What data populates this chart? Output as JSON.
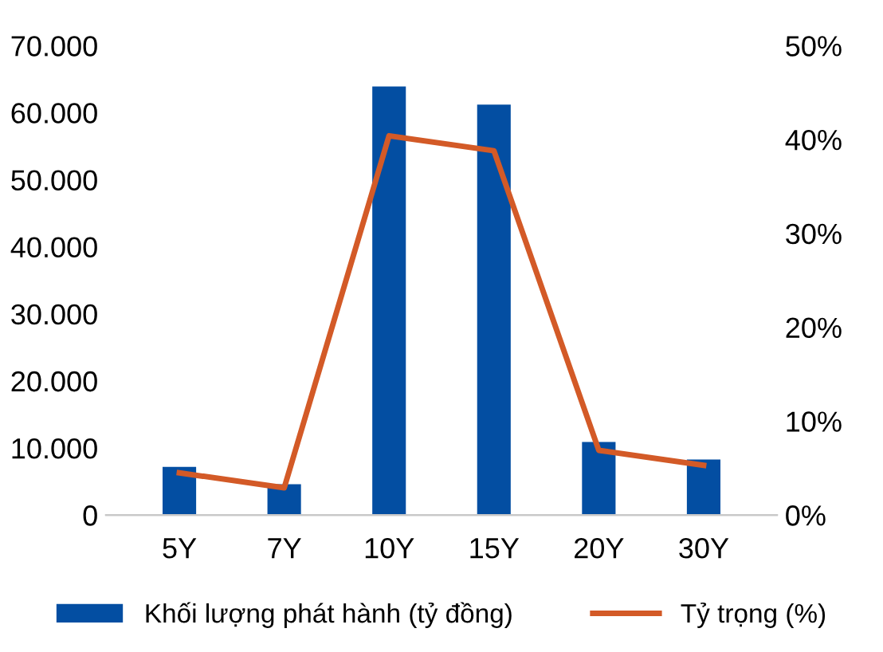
{
  "chart_data": {
    "type": "bar",
    "categories": [
      "5Y",
      "7Y",
      "10Y",
      "15Y",
      "20Y",
      "30Y"
    ],
    "series": [
      {
        "name": "Khối lượng phát hành (tỷ đồng)",
        "color": "#034ea2",
        "values": [
          7200,
          4600,
          63900,
          61200,
          10900,
          8300
        ]
      },
      {
        "name": "Tỷ trọng (%)",
        "type": "line",
        "axis": "y2",
        "color": "#d35a27",
        "values": [
          4.5,
          2.9,
          40.4,
          38.8,
          6.9,
          5.3
        ]
      }
    ],
    "ylim": [
      0,
      70000
    ],
    "yticks": [
      {
        "value": 0,
        "label": "0"
      },
      {
        "value": 10000,
        "label": "10.000"
      },
      {
        "value": 20000,
        "label": "20.000"
      },
      {
        "value": 30000,
        "label": "30.000"
      },
      {
        "value": 40000,
        "label": "40.000"
      },
      {
        "value": 50000,
        "label": "50.000"
      },
      {
        "value": 60000,
        "label": "60.000"
      },
      {
        "value": 70000,
        "label": "70.000"
      }
    ],
    "y2lim": [
      0,
      50
    ],
    "y2ticks": [
      {
        "value": 0,
        "label": "0%"
      },
      {
        "value": 10,
        "label": "10%"
      },
      {
        "value": 20,
        "label": "20%"
      },
      {
        "value": 30,
        "label": "30%"
      },
      {
        "value": 40,
        "label": "40%"
      },
      {
        "value": 50,
        "label": "50%"
      }
    ],
    "grid": false,
    "legend": "bottom"
  }
}
